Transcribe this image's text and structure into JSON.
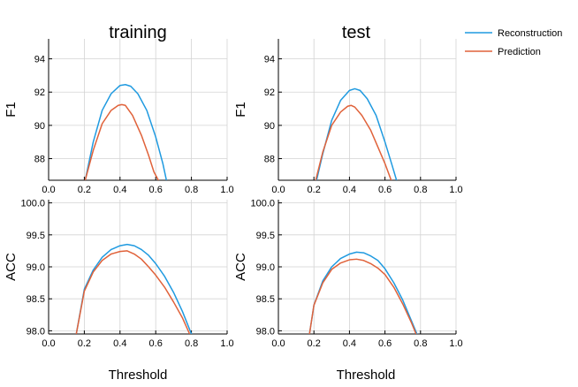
{
  "chart_data": {
    "type": "line",
    "columns": [
      "training",
      "test"
    ],
    "xlabel": "Threshold",
    "legend": {
      "placement": "top-right",
      "entries": [
        {
          "name": "Reconstruction",
          "color": "#1f9ae0"
        },
        {
          "name": "Prediction",
          "color": "#e0623a"
        }
      ]
    },
    "panels": [
      {
        "id": "f1-training",
        "column": "training",
        "metric": "F1",
        "ylabel": "F1",
        "show_title": true,
        "show_ylabel": true,
        "xlim": [
          0.0,
          1.0
        ],
        "ylim": [
          86.7,
          95.2
        ],
        "xticks": [
          0.0,
          0.2,
          0.4,
          0.6,
          0.8,
          1.0
        ],
        "xtick_labels": [
          "0.0",
          "0.2",
          "0.4",
          "0.6",
          "0.8",
          "1.0"
        ],
        "yticks": [
          88,
          90,
          92,
          94
        ],
        "ytick_labels": [
          "88",
          "90",
          "92",
          "94"
        ],
        "series": [
          {
            "name": "Reconstruction",
            "color": "#1f9ae0",
            "x": [
              0.205,
              0.25,
              0.3,
              0.35,
              0.4,
              0.43,
              0.46,
              0.5,
              0.55,
              0.6,
              0.64,
              0.66
            ],
            "y": [
              86.7,
              89.0,
              90.9,
              91.9,
              92.4,
              92.45,
              92.35,
              91.9,
              90.9,
              89.3,
              87.7,
              86.7
            ]
          },
          {
            "name": "Prediction",
            "color": "#e0623a",
            "x": [
              0.205,
              0.25,
              0.3,
              0.35,
              0.39,
              0.41,
              0.43,
              0.47,
              0.52,
              0.56,
              0.59,
              0.615
            ],
            "y": [
              86.7,
              88.5,
              90.1,
              90.9,
              91.2,
              91.25,
              91.2,
              90.6,
              89.4,
              88.2,
              87.2,
              86.7
            ]
          }
        ]
      },
      {
        "id": "f1-test",
        "column": "test",
        "metric": "F1",
        "ylabel": "F1",
        "show_title": true,
        "show_ylabel": true,
        "xlim": [
          0.0,
          1.0
        ],
        "ylim": [
          86.7,
          95.2
        ],
        "xticks": [
          0.0,
          0.2,
          0.4,
          0.6,
          0.8,
          1.0
        ],
        "xtick_labels": [
          "0.0",
          "0.2",
          "0.4",
          "0.6",
          "0.8",
          "1.0"
        ],
        "yticks": [
          88,
          90,
          92,
          94
        ],
        "ytick_labels": [
          "88",
          "90",
          "92",
          "94"
        ],
        "series": [
          {
            "name": "Reconstruction",
            "color": "#1f9ae0",
            "x": [
              0.215,
              0.25,
              0.3,
              0.35,
              0.4,
              0.43,
              0.46,
              0.5,
              0.55,
              0.6,
              0.64,
              0.665
            ],
            "y": [
              86.7,
              88.3,
              90.3,
              91.5,
              92.1,
              92.2,
              92.1,
              91.6,
              90.6,
              89.0,
              87.6,
              86.7
            ]
          },
          {
            "name": "Prediction",
            "color": "#e0623a",
            "x": [
              0.21,
              0.25,
              0.3,
              0.35,
              0.39,
              0.41,
              0.43,
              0.47,
              0.52,
              0.56,
              0.6,
              0.635
            ],
            "y": [
              86.7,
              88.4,
              90.0,
              90.8,
              91.15,
              91.2,
              91.1,
              90.6,
              89.7,
              88.7,
              87.7,
              86.7
            ]
          }
        ]
      },
      {
        "id": "acc-training",
        "column": "training",
        "metric": "ACC",
        "ylabel": "ACC",
        "show_title": false,
        "show_ylabel": true,
        "xlim": [
          0.0,
          1.0
        ],
        "ylim": [
          97.95,
          100.05
        ],
        "xticks": [
          0.0,
          0.2,
          0.4,
          0.6,
          0.8,
          1.0
        ],
        "xtick_labels": [
          "0.0",
          "0.2",
          "0.4",
          "0.6",
          "0.8",
          "1.0"
        ],
        "yticks": [
          98.0,
          98.5,
          99.0,
          99.5,
          100.0
        ],
        "ytick_labels": [
          "98.0",
          "98.5",
          "99.0",
          "99.5",
          "100.0"
        ],
        "series": [
          {
            "name": "Reconstruction",
            "color": "#1f9ae0",
            "x": [
              0.155,
              0.2,
              0.25,
              0.3,
              0.35,
              0.4,
              0.44,
              0.48,
              0.52,
              0.56,
              0.6,
              0.65,
              0.7,
              0.75,
              0.8
            ],
            "y": [
              97.95,
              98.65,
              98.95,
              99.15,
              99.27,
              99.33,
              99.35,
              99.33,
              99.27,
              99.18,
              99.05,
              98.85,
              98.6,
              98.3,
              97.95
            ]
          },
          {
            "name": "Prediction",
            "color": "#e0623a",
            "x": [
              0.155,
              0.2,
              0.25,
              0.3,
              0.35,
              0.4,
              0.44,
              0.48,
              0.52,
              0.56,
              0.6,
              0.65,
              0.7,
              0.75,
              0.79
            ],
            "y": [
              97.95,
              98.62,
              98.92,
              99.1,
              99.2,
              99.24,
              99.25,
              99.2,
              99.12,
              99.0,
              98.87,
              98.68,
              98.45,
              98.2,
              97.95
            ]
          }
        ]
      },
      {
        "id": "acc-test",
        "column": "test",
        "metric": "ACC",
        "ylabel": "ACC",
        "show_title": false,
        "show_ylabel": true,
        "xlim": [
          0.0,
          1.0
        ],
        "ylim": [
          97.95,
          100.05
        ],
        "xticks": [
          0.0,
          0.2,
          0.4,
          0.6,
          0.8,
          1.0
        ],
        "xtick_labels": [
          "0.0",
          "0.2",
          "0.4",
          "0.6",
          "0.8",
          "1.0"
        ],
        "yticks": [
          98.0,
          98.5,
          99.0,
          99.5,
          100.0
        ],
        "ytick_labels": [
          "98.0",
          "98.5",
          "99.0",
          "99.5",
          "100.0"
        ],
        "series": [
          {
            "name": "Reconstruction",
            "color": "#1f9ae0",
            "x": [
              0.175,
              0.2,
              0.25,
              0.3,
              0.35,
              0.4,
              0.44,
              0.48,
              0.52,
              0.56,
              0.6,
              0.65,
              0.7,
              0.75,
              0.78
            ],
            "y": [
              97.95,
              98.4,
              98.78,
              99.0,
              99.13,
              99.2,
              99.23,
              99.22,
              99.17,
              99.1,
              98.97,
              98.75,
              98.48,
              98.15,
              97.95
            ]
          },
          {
            "name": "Prediction",
            "color": "#e0623a",
            "x": [
              0.175,
              0.2,
              0.25,
              0.3,
              0.35,
              0.4,
              0.44,
              0.48,
              0.52,
              0.56,
              0.6,
              0.65,
              0.7,
              0.75,
              0.775
            ],
            "y": [
              97.95,
              98.4,
              98.75,
              98.96,
              99.06,
              99.11,
              99.12,
              99.1,
              99.05,
              98.98,
              98.88,
              98.68,
              98.42,
              98.12,
              97.95
            ]
          }
        ]
      }
    ]
  }
}
